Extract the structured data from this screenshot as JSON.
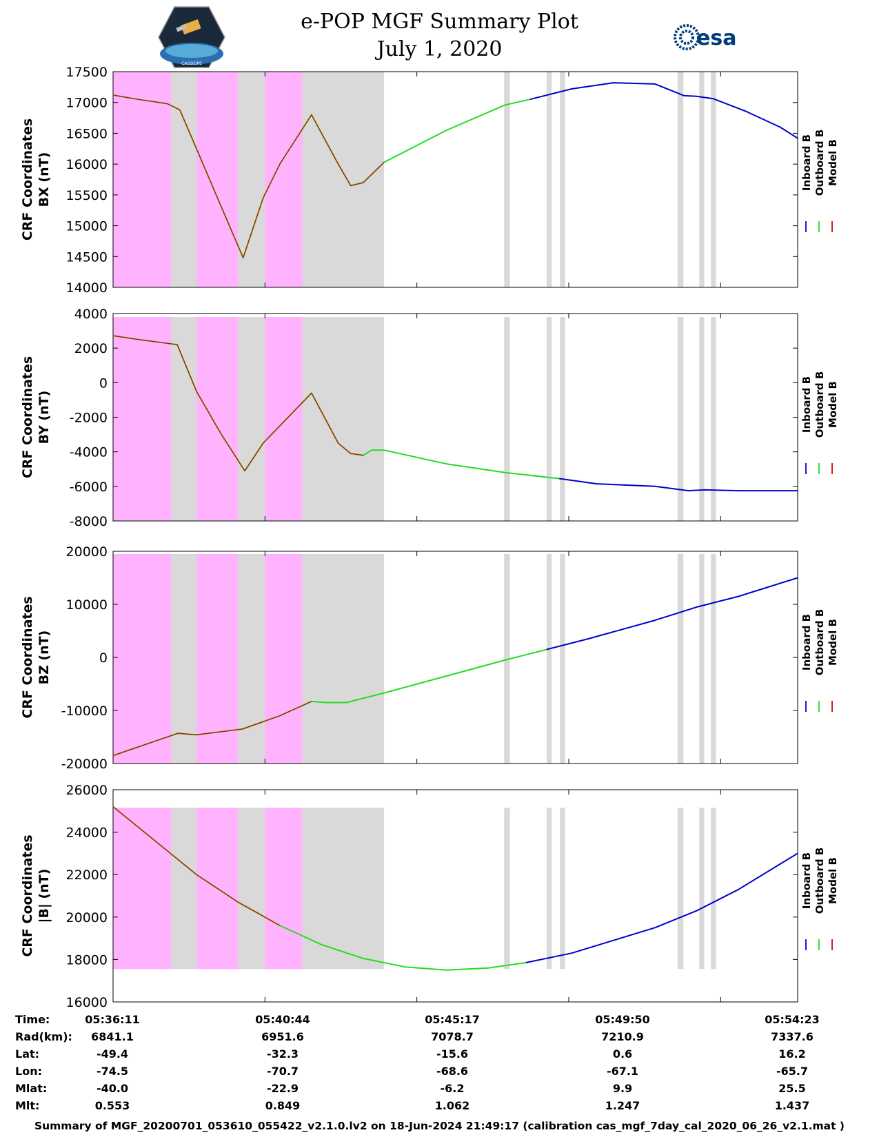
{
  "header": {
    "title": "e-POP MGF Summary Plot",
    "date": "July 1, 2020",
    "logo_left_text": "CASSIOPE",
    "logo_right_text": "esa"
  },
  "colors": {
    "inboard": "#0000cc",
    "outboard": "#22dd22",
    "model": "#dd0000",
    "pink_band": "#ffb3ff",
    "grey_band": "#d9d9d9"
  },
  "legend": [
    "Inboard B",
    "Outboard B",
    "Model B"
  ],
  "footer": {
    "row_labels": [
      "Time:",
      "Rad(km):",
      "Lat:",
      "Lon:",
      "Mlat:",
      "Mlt:"
    ],
    "columns": [
      [
        "05:36:11",
        "6841.1",
        "-49.4",
        "-74.5",
        "-40.0",
        "0.553"
      ],
      [
        "05:40:44",
        "6951.6",
        "-32.3",
        "-70.7",
        "-22.9",
        "0.849"
      ],
      [
        "05:45:17",
        "7078.7",
        "-15.6",
        "-68.6",
        "-6.2",
        "1.062"
      ],
      [
        "05:49:50",
        "7210.9",
        "0.6",
        "-67.1",
        "9.9",
        "1.247"
      ],
      [
        "05:54:23",
        "7337.6",
        "16.2",
        "-65.7",
        "25.5",
        "1.437"
      ]
    ],
    "summary": "Summary of MGF_20200701_053610_055422_v2.1.0.lv2 on 18-Jun-2024 21:49:17 (calibration cas_mgf_7day_cal_2020_06_26_v2.1.mat )"
  },
  "chart_data": [
    {
      "type": "line",
      "ylabel": [
        "CRF Coordinates",
        "BX (nT)"
      ],
      "ylim": [
        14000,
        17500
      ],
      "yticks": [
        17500,
        17000,
        16500,
        16000,
        15500,
        15000,
        14500,
        14000
      ],
      "x_range_min": [
        0,
        1092
      ],
      "band_range": [
        14000,
        17500
      ],
      "pink_bands": [
        [
          0,
          7
        ],
        [
          10,
          15
        ],
        [
          18.2,
          22.7
        ],
        [
          25.8,
          25.9
        ],
        [
          26.4,
          26.5
        ]
      ],
      "grey_bands": [
        [
          7,
          10
        ],
        [
          15,
          18.2
        ],
        [
          22.7,
          32.5
        ],
        [
          46.9,
          47.6
        ],
        [
          52.0,
          52.6
        ],
        [
          53.6,
          54.2
        ],
        [
          67.7,
          68.4
        ],
        [
          70.3,
          70.9
        ],
        [
          71.7,
          72.3
        ]
      ],
      "series": [
        {
          "name": "Outboard B",
          "x": [
            0,
            3,
            6.5,
            8,
            10,
            13,
            15.6,
            18,
            20,
            23.8,
            27,
            28.5,
            30,
            32.5,
            40,
            47,
            50
          ],
          "y": [
            17120,
            17050,
            16980,
            16880,
            16250,
            15300,
            14480,
            15450,
            16000,
            16800,
            16000,
            15650,
            15700,
            16030,
            16550,
            16960,
            17050
          ]
        },
        {
          "name": "Inboard B",
          "x": [
            50,
            55,
            60,
            65,
            68.5,
            70,
            72,
            76,
            80,
            82.1
          ],
          "y": [
            17050,
            17220,
            17320,
            17300,
            17110,
            17100,
            17060,
            16850,
            16600,
            16420
          ]
        },
        {
          "name": "Model B",
          "x": [
            0,
            3,
            6.5,
            8,
            10,
            13,
            15.6,
            18,
            20,
            23.8,
            27,
            28.5,
            30,
            32.5
          ],
          "y": [
            17120,
            17050,
            16980,
            16880,
            16250,
            15300,
            14480,
            15450,
            16000,
            16800,
            16000,
            15650,
            15700,
            16030
          ]
        }
      ]
    },
    {
      "type": "line",
      "ylabel": [
        "CRF Coordinates",
        "BY (nT)"
      ],
      "ylim": [
        -8000,
        4000
      ],
      "yticks": [
        4000,
        2000,
        0,
        -2000,
        -4000,
        -6000,
        -8000
      ],
      "band_range": [
        -8000,
        3800
      ],
      "pink_bands": [
        [
          0,
          7
        ],
        [
          10,
          15
        ],
        [
          18.2,
          22.7
        ],
        [
          25.8,
          25.9
        ],
        [
          26.4,
          26.5
        ]
      ],
      "grey_bands": [
        [
          7,
          10
        ],
        [
          15,
          18.2
        ],
        [
          22.7,
          32.5
        ],
        [
          46.9,
          47.6
        ],
        [
          52.0,
          52.6
        ],
        [
          53.6,
          54.2
        ],
        [
          67.7,
          68.4
        ],
        [
          70.3,
          70.9
        ],
        [
          71.7,
          72.3
        ]
      ],
      "series": [
        {
          "name": "Outboard B",
          "x": [
            0,
            3,
            7.7,
            10,
            13,
            15.8,
            18,
            20,
            23.8,
            27,
            28.5,
            30,
            31,
            32.5,
            40,
            47,
            53.5
          ],
          "y": [
            2720,
            2500,
            2200,
            -500,
            -3000,
            -5100,
            -3500,
            -2500,
            -600,
            -3500,
            -4100,
            -4200,
            -3900,
            -3900,
            -4700,
            -5200,
            -5550
          ]
        },
        {
          "name": "Inboard B",
          "x": [
            53.5,
            58,
            65,
            69,
            71,
            75,
            82.1
          ],
          "y": [
            -5550,
            -5850,
            -6000,
            -6250,
            -6200,
            -6250,
            -6250
          ]
        },
        {
          "name": "Model B",
          "x": [
            0,
            3,
            7.7,
            10,
            13,
            15.8,
            18,
            20,
            23.8,
            27,
            28.5,
            30
          ],
          "y": [
            2720,
            2500,
            2200,
            -500,
            -3000,
            -5100,
            -3500,
            -2500,
            -600,
            -3500,
            -4100,
            -4200
          ]
        }
      ]
    },
    {
      "type": "line",
      "ylabel": [
        "CRF Coordinates",
        "BZ (nT)"
      ],
      "ylim": [
        -20000,
        20000
      ],
      "yticks": [
        20000,
        10000,
        0,
        -10000,
        -20000
      ],
      "band_range": [
        -20000,
        19500
      ],
      "pink_bands": [
        [
          0,
          7
        ],
        [
          10,
          15
        ],
        [
          18.2,
          22.7
        ],
        [
          25.8,
          25.9
        ],
        [
          26.4,
          26.5
        ]
      ],
      "grey_bands": [
        [
          7,
          10
        ],
        [
          15,
          18.2
        ],
        [
          22.7,
          32.5
        ],
        [
          46.9,
          47.6
        ],
        [
          52.0,
          52.6
        ],
        [
          53.6,
          54.2
        ],
        [
          67.7,
          68.4
        ],
        [
          70.3,
          70.9
        ],
        [
          71.7,
          72.3
        ]
      ],
      "series": [
        {
          "name": "Outboard B",
          "x": [
            0,
            7.8,
            10,
            15.5,
            20,
            23.8,
            25.5,
            28,
            32.5,
            40,
            47,
            52
          ],
          "y": [
            -18500,
            -14300,
            -14600,
            -13500,
            -11000,
            -8300,
            -8500,
            -8500,
            -6700,
            -3500,
            -500,
            1500
          ]
        },
        {
          "name": "Inboard B",
          "x": [
            52,
            57,
            65,
            70,
            75,
            82.1
          ],
          "y": [
            1500,
            3500,
            7000,
            9500,
            11500,
            15000
          ]
        },
        {
          "name": "Model B",
          "x": [
            0,
            7.8,
            10,
            15.5,
            20,
            23.8
          ],
          "y": [
            -18500,
            -14300,
            -14600,
            -13500,
            -11000,
            -8300
          ]
        }
      ]
    },
    {
      "type": "line",
      "ylabel": [
        "CRF Coordinates",
        "|B| (nT)"
      ],
      "ylim": [
        16000,
        26000
      ],
      "yticks": [
        26000,
        24000,
        22000,
        20000,
        18000,
        16000
      ],
      "band_range": [
        17550,
        25150
      ],
      "pink_bands": [
        [
          0,
          7
        ],
        [
          10,
          15
        ],
        [
          18.2,
          22.7
        ],
        [
          25.8,
          25.9
        ],
        [
          26.4,
          26.5
        ]
      ],
      "grey_bands": [
        [
          7,
          10
        ],
        [
          15,
          18.2
        ],
        [
          22.7,
          32.5
        ],
        [
          46.9,
          47.6
        ],
        [
          52.0,
          52.6
        ],
        [
          53.6,
          54.2
        ],
        [
          67.7,
          68.4
        ],
        [
          70.3,
          70.9
        ],
        [
          71.7,
          72.3
        ]
      ],
      "series": [
        {
          "name": "Outboard B",
          "x": [
            0,
            5,
            10,
            15,
            20,
            25,
            30,
            35,
            40,
            45,
            49.5
          ],
          "y": [
            25200,
            23600,
            22000,
            20700,
            19600,
            18700,
            18050,
            17650,
            17500,
            17600,
            17850
          ]
        },
        {
          "name": "Inboard B",
          "x": [
            49.5,
            55,
            60,
            65,
            70,
            75,
            82.1
          ],
          "y": [
            17850,
            18300,
            18900,
            19500,
            20300,
            21300,
            23000
          ]
        },
        {
          "name": "Model B",
          "x": [
            0,
            5,
            10,
            15,
            20
          ],
          "y": [
            25200,
            23600,
            22000,
            20700,
            19600
          ]
        }
      ]
    }
  ]
}
